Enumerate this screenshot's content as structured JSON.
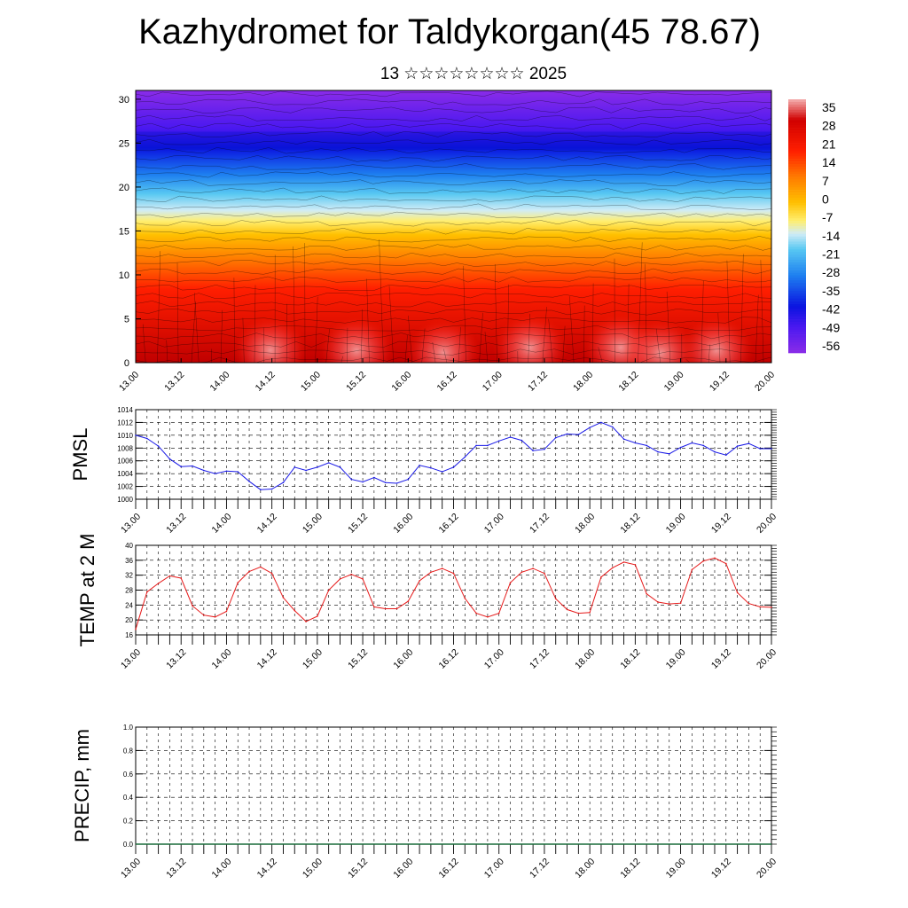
{
  "title": "Kazhydromet for Taldykorgan(45 78.67)",
  "subtitle": "13 ☆☆☆☆☆☆☆☆ 2025",
  "colors": {
    "pmsl_line": "#1a1ae6",
    "temp_line": "#e61a1a",
    "grid": "#000000"
  },
  "chart_data": [
    {
      "type": "heatmap",
      "name": "cross-section",
      "x_tick_labels": [
        "13.00",
        "13.12",
        "14.00",
        "14.12",
        "15.00",
        "15.12",
        "16.00",
        "16.12",
        "17.00",
        "17.12",
        "18.00",
        "18.12",
        "19.00",
        "19.12",
        "20.00"
      ],
      "y_tick_labels": [
        "0",
        "5",
        "10",
        "15",
        "20",
        "25",
        "30"
      ],
      "ylim": [
        0,
        31
      ],
      "colorbar_labels": [
        "35",
        "28",
        "21",
        "14",
        "7",
        "0",
        "-7",
        "-14",
        "-21",
        "-28",
        "-35",
        "-42",
        "-49",
        "-56"
      ],
      "colorbar_range": [
        -60,
        38
      ]
    },
    {
      "type": "line",
      "ylabel": "PMSL",
      "ylim": [
        1000,
        1014
      ],
      "y_tick_labels": [
        "1014",
        "1012",
        "1010",
        "1008",
        "1006",
        "1004",
        "1002",
        "1000"
      ],
      "x_tick_labels": [
        "13.00",
        "13.12",
        "14.00",
        "14.12",
        "15.00",
        "15.12",
        "16.00",
        "16.12",
        "17.00",
        "17.12",
        "18.00",
        "18.12",
        "19.00",
        "19.12",
        "20.00"
      ],
      "x_hours": [
        0,
        3,
        6,
        9,
        12,
        15,
        18,
        21,
        24,
        27,
        30,
        33,
        36,
        39,
        42,
        45,
        48,
        51,
        54,
        57,
        60,
        63,
        66,
        69,
        72,
        75,
        78,
        81,
        84,
        87,
        90,
        93,
        96,
        99,
        102,
        105,
        108,
        111,
        114,
        117,
        120,
        123,
        126,
        129,
        132,
        135,
        138,
        141,
        144,
        147,
        150,
        153,
        156,
        159,
        162,
        165,
        168
      ],
      "values": [
        1010.0,
        1009.5,
        1008.3,
        1006.3,
        1005.1,
        1005.2,
        1004.5,
        1004.0,
        1004.4,
        1004.3,
        1002.8,
        1001.5,
        1001.6,
        1002.6,
        1005.0,
        1004.5,
        1005.0,
        1005.7,
        1005.0,
        1003.1,
        1002.7,
        1003.4,
        1002.6,
        1002.5,
        1003.1,
        1005.3,
        1004.9,
        1004.3,
        1005.0,
        1006.6,
        1008.4,
        1008.4,
        1009.1,
        1009.7,
        1009.2,
        1007.6,
        1007.8,
        1009.6,
        1010.2,
        1010.1,
        1011.2,
        1012.0,
        1011.3,
        1009.4,
        1008.8,
        1008.4,
        1007.4,
        1007.1,
        1008.1,
        1008.8,
        1008.4,
        1007.4,
        1006.9,
        1008.3,
        1008.7,
        1007.9,
        1007.9
      ]
    },
    {
      "type": "line",
      "ylabel": "TEMP at 2 M",
      "ylim": [
        16,
        40
      ],
      "y_tick_labels": [
        "40",
        "36",
        "32",
        "28",
        "24",
        "20",
        "16"
      ],
      "x_tick_labels": [
        "13.00",
        "13.12",
        "14.00",
        "14.12",
        "15.00",
        "15.12",
        "16.00",
        "16.12",
        "17.00",
        "17.12",
        "18.00",
        "18.12",
        "19.00",
        "19.12",
        "20.00"
      ],
      "x_hours": [
        0,
        3,
        6,
        9,
        12,
        15,
        18,
        21,
        24,
        27,
        30,
        33,
        36,
        39,
        42,
        45,
        48,
        51,
        54,
        57,
        60,
        63,
        66,
        69,
        72,
        75,
        78,
        81,
        84,
        87,
        90,
        93,
        96,
        99,
        102,
        105,
        108,
        111,
        114,
        117,
        120,
        123,
        126,
        129,
        132,
        135,
        138,
        141,
        144,
        147,
        150,
        153,
        156,
        159,
        162,
        165,
        168
      ],
      "values": [
        17.5,
        27.5,
        29.8,
        31.8,
        31.2,
        23.8,
        21.3,
        20.8,
        22.3,
        30.0,
        33.0,
        34.2,
        32.5,
        26.0,
        22.5,
        19.6,
        21.0,
        28.0,
        31.0,
        32.2,
        31.0,
        23.5,
        23.0,
        23.0,
        25.0,
        30.5,
        32.8,
        33.8,
        32.5,
        25.8,
        21.8,
        20.8,
        21.8,
        30.0,
        32.8,
        33.8,
        32.5,
        25.7,
        22.8,
        21.8,
        22.0,
        31.5,
        34.0,
        35.5,
        34.8,
        27.0,
        24.8,
        24.3,
        24.5,
        33.5,
        35.8,
        36.6,
        35.1,
        27.3,
        24.4,
        23.5,
        23.4
      ]
    },
    {
      "type": "line",
      "ylabel": "PRECIP, mm",
      "ylim": [
        0,
        1
      ],
      "y_tick_labels": [
        "1.0",
        "0.8",
        "0.6",
        "0.4",
        "0.2",
        "0.0"
      ],
      "x_tick_labels": [
        "13.00",
        "13.12",
        "14.00",
        "14.12",
        "15.00",
        "15.12",
        "16.00",
        "16.12",
        "17.00",
        "17.12",
        "18.00",
        "18.12",
        "19.00",
        "19.12",
        "20.00"
      ],
      "values": [
        0
      ]
    }
  ]
}
